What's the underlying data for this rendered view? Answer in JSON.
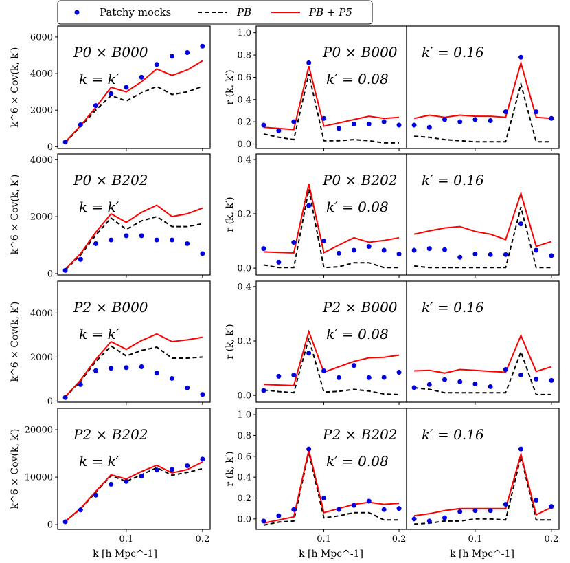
{
  "legend": {
    "entries": [
      {
        "label": "Patchy mocks",
        "style": "markers",
        "color": "#0000dd"
      },
      {
        "label": "PB",
        "style": "dashed",
        "color": "#000000"
      },
      {
        "label": "PB + P5",
        "style": "solid",
        "color": "#ff0000"
      }
    ]
  },
  "shared_x": {
    "label": "k [h Mpc^-1]",
    "ticks": [
      0.1,
      0.2
    ],
    "tick_labels": [
      "0.1",
      "0.2"
    ],
    "xlim": [
      0.01,
      0.21
    ]
  },
  "chart_data": [
    {
      "type": "line",
      "id": "p0b000-cov",
      "row": 0,
      "col": 0,
      "annotations": [
        "P0 × B000",
        "k = k′"
      ],
      "ylabel": "k^6 × Cov(k, k′)",
      "ylim": [
        -100,
        6600
      ],
      "yticks": [
        0,
        2000,
        4000,
        6000
      ],
      "ytick_labels": [
        "0",
        "2000",
        "4000",
        "6000"
      ],
      "x": [
        0.02,
        0.04,
        0.06,
        0.08,
        0.1,
        0.12,
        0.14,
        0.16,
        0.18,
        0.2
      ],
      "series": [
        {
          "name": "Patchy mocks",
          "values": [
            250,
            1200,
            2250,
            2900,
            3250,
            3800,
            4500,
            4950,
            5150,
            5500
          ]
        },
        {
          "name": "PB",
          "values": [
            220,
            1100,
            2000,
            2800,
            2500,
            2950,
            3300,
            2850,
            3000,
            3300
          ]
        },
        {
          "name": "PB + P5",
          "values": [
            250,
            1150,
            2150,
            3250,
            3000,
            3550,
            4250,
            3900,
            4200,
            4700
          ]
        }
      ]
    },
    {
      "type": "line",
      "id": "p0b000-r-008",
      "row": 0,
      "col": 1,
      "annotations": [
        "P0 × B000",
        "k′ = 0.08"
      ],
      "ylabel": "r (k, k′)",
      "ylim": [
        -0.04,
        1.06
      ],
      "yticks": [
        0.0,
        0.2,
        0.4,
        0.6,
        0.8,
        1.0
      ],
      "ytick_labels": [
        "0.0",
        "0.2",
        "0.4",
        "0.6",
        "0.8",
        "1.0"
      ],
      "x": [
        0.02,
        0.04,
        0.06,
        0.08,
        0.1,
        0.12,
        0.14,
        0.16,
        0.18,
        0.2
      ],
      "series": [
        {
          "name": "Patchy mocks",
          "values": [
            0.17,
            0.12,
            0.2,
            0.73,
            0.23,
            0.14,
            0.18,
            0.18,
            0.2,
            0.17
          ]
        },
        {
          "name": "PB",
          "values": [
            0.09,
            0.06,
            0.04,
            0.63,
            0.03,
            0.03,
            0.04,
            0.03,
            0.01,
            0.01
          ]
        },
        {
          "name": "PB + P5",
          "values": [
            0.15,
            0.14,
            0.13,
            0.7,
            0.16,
            0.19,
            0.22,
            0.25,
            0.23,
            0.24
          ]
        }
      ]
    },
    {
      "type": "line",
      "id": "p0b000-r-016",
      "row": 0,
      "col": 2,
      "annotations": [
        "k′ = 0.16"
      ],
      "ylabel": "",
      "ylim": [
        -0.04,
        1.06
      ],
      "yticks": [],
      "ytick_labels": [],
      "x": [
        0.02,
        0.04,
        0.06,
        0.08,
        0.1,
        0.12,
        0.14,
        0.16,
        0.18,
        0.2
      ],
      "series": [
        {
          "name": "Patchy mocks",
          "values": [
            0.17,
            0.15,
            0.22,
            0.2,
            0.22,
            0.21,
            0.29,
            0.78,
            0.29,
            0.23
          ]
        },
        {
          "name": "PB",
          "values": [
            0.07,
            0.06,
            0.04,
            0.03,
            0.02,
            0.02,
            0.02,
            0.54,
            0.02,
            0.02
          ]
        },
        {
          "name": "PB + P5",
          "values": [
            0.23,
            0.26,
            0.24,
            0.26,
            0.25,
            0.25,
            0.24,
            0.73,
            0.24,
            0.23
          ]
        }
      ]
    },
    {
      "type": "line",
      "id": "p0b202-cov",
      "row": 1,
      "col": 0,
      "annotations": [
        "P0 × B202",
        "k = k′"
      ],
      "ylabel": "k^6 × Cov(k, k′)",
      "ylim": [
        -50,
        4200
      ],
      "yticks": [
        0,
        2000,
        4000
      ],
      "ytick_labels": [
        "0",
        "2000",
        "4000"
      ],
      "x": [
        0.02,
        0.04,
        0.06,
        0.08,
        0.1,
        0.12,
        0.14,
        0.16,
        0.18,
        0.2
      ],
      "series": [
        {
          "name": "Patchy mocks",
          "values": [
            110,
            500,
            1050,
            1180,
            1330,
            1330,
            1180,
            1180,
            1050,
            700
          ]
        },
        {
          "name": "PB",
          "values": [
            130,
            650,
            1350,
            1950,
            1550,
            1850,
            2000,
            1650,
            1650,
            1750
          ]
        },
        {
          "name": "PB + P5",
          "values": [
            150,
            700,
            1450,
            2100,
            1800,
            2150,
            2400,
            2000,
            2100,
            2300
          ]
        }
      ]
    },
    {
      "type": "line",
      "id": "p0b202-r-008",
      "row": 1,
      "col": 1,
      "annotations": [
        "P0 × B202",
        "k′ = 0.08"
      ],
      "ylabel": "r (k, k′)",
      "ylim": [
        -0.025,
        0.42
      ],
      "yticks": [
        0.0,
        0.2,
        0.4
      ],
      "ytick_labels": [
        "0.0",
        "0.2",
        "0.4"
      ],
      "x": [
        0.02,
        0.04,
        0.06,
        0.08,
        0.1,
        0.12,
        0.14,
        0.16,
        0.18,
        0.2
      ],
      "series": [
        {
          "name": "Patchy mocks",
          "values": [
            0.072,
            0.022,
            0.095,
            0.23,
            0.1,
            0.055,
            0.066,
            0.08,
            0.066,
            0.052
          ]
        },
        {
          "name": "PB",
          "values": [
            0.012,
            0.002,
            0.002,
            0.29,
            0.002,
            0.005,
            0.02,
            0.02,
            0.002,
            0.002
          ]
        },
        {
          "name": "PB + P5",
          "values": [
            0.06,
            0.058,
            0.056,
            0.31,
            0.057,
            0.085,
            0.112,
            0.095,
            0.102,
            0.112
          ]
        }
      ]
    },
    {
      "type": "line",
      "id": "p0b202-r-016",
      "row": 1,
      "col": 2,
      "annotations": [
        "k′ = 0.16"
      ],
      "ylabel": "",
      "ylim": [
        -0.025,
        0.42
      ],
      "yticks": [],
      "ytick_labels": [],
      "x": [
        0.02,
        0.04,
        0.06,
        0.08,
        0.1,
        0.12,
        0.14,
        0.16,
        0.18,
        0.2
      ],
      "series": [
        {
          "name": "Patchy mocks",
          "values": [
            0.066,
            0.072,
            0.068,
            0.04,
            0.052,
            0.05,
            0.05,
            0.163,
            0.066,
            0.046
          ]
        },
        {
          "name": "PB",
          "values": [
            0.008,
            0.002,
            0.002,
            0.002,
            0.002,
            0.002,
            0.002,
            0.225,
            0.002,
            0.002
          ]
        },
        {
          "name": "PB + P5",
          "values": [
            0.125,
            0.137,
            0.148,
            0.153,
            0.135,
            0.125,
            0.105,
            0.275,
            0.08,
            0.098
          ]
        }
      ]
    },
    {
      "type": "line",
      "id": "p2b000-cov",
      "row": 2,
      "col": 0,
      "annotations": [
        "P2 × B000",
        "k = k′"
      ],
      "ylabel": "k^6 × Cov(k, k′)",
      "ylim": [
        -50,
        5450
      ],
      "yticks": [
        0,
        2000,
        4000
      ],
      "ytick_labels": [
        "0",
        "2000",
        "4000"
      ],
      "x": [
        0.02,
        0.04,
        0.06,
        0.08,
        0.1,
        0.12,
        0.14,
        0.16,
        0.18,
        0.2
      ],
      "series": [
        {
          "name": "Patchy mocks",
          "values": [
            160,
            750,
            1380,
            1490,
            1520,
            1560,
            1270,
            1030,
            600,
            300
          ]
        },
        {
          "name": "PB",
          "values": [
            180,
            900,
            1800,
            2500,
            2050,
            2300,
            2450,
            1950,
            1950,
            2000
          ]
        },
        {
          "name": "PB + P5",
          "values": [
            200,
            950,
            1900,
            2700,
            2350,
            2750,
            3050,
            2700,
            2780,
            2900
          ]
        }
      ]
    },
    {
      "type": "line",
      "id": "p2b000-r-008",
      "row": 2,
      "col": 1,
      "annotations": [
        "P2 × B000",
        "k′ = 0.08"
      ],
      "ylabel": "r (k, k′)",
      "ylim": [
        -0.025,
        0.42
      ],
      "yticks": [
        0.0,
        0.2,
        0.4
      ],
      "ytick_labels": [
        "0.0",
        "0.2",
        "0.4"
      ],
      "x": [
        0.02,
        0.04,
        0.06,
        0.08,
        0.1,
        0.12,
        0.14,
        0.16,
        0.18,
        0.2
      ],
      "series": [
        {
          "name": "Patchy mocks",
          "values": [
            0.018,
            0.07,
            0.075,
            0.155,
            0.09,
            0.065,
            0.11,
            0.065,
            0.066,
            0.085
          ]
        },
        {
          "name": "PB",
          "values": [
            0.02,
            0.014,
            0.01,
            0.21,
            0.012,
            0.015,
            0.022,
            0.016,
            0.005,
            0.003
          ]
        },
        {
          "name": "PB + P5",
          "values": [
            0.04,
            0.038,
            0.036,
            0.235,
            0.085,
            0.105,
            0.125,
            0.138,
            0.14,
            0.148
          ]
        }
      ]
    },
    {
      "type": "line",
      "id": "p2b000-r-016",
      "row": 2,
      "col": 2,
      "annotations": [
        "k′ = 0.16"
      ],
      "ylabel": "",
      "ylim": [
        -0.025,
        0.42
      ],
      "yticks": [],
      "ytick_labels": [],
      "x": [
        0.02,
        0.04,
        0.06,
        0.08,
        0.1,
        0.12,
        0.14,
        0.16,
        0.18,
        0.2
      ],
      "series": [
        {
          "name": "Patchy mocks",
          "values": [
            0.028,
            0.04,
            0.058,
            0.05,
            0.042,
            0.032,
            0.095,
            0.075,
            0.06,
            0.055
          ]
        },
        {
          "name": "PB",
          "values": [
            0.028,
            0.022,
            0.01,
            0.01,
            0.01,
            0.01,
            0.01,
            0.16,
            0.003,
            0.003
          ]
        },
        {
          "name": "PB + P5",
          "values": [
            0.09,
            0.092,
            0.082,
            0.095,
            0.092,
            0.088,
            0.085,
            0.22,
            0.088,
            0.105
          ]
        }
      ]
    },
    {
      "type": "line",
      "id": "p2b202-cov",
      "row": 3,
      "col": 0,
      "annotations": [
        "P2 × B202",
        "k = k′"
      ],
      "ylabel": "k^6 × Cov(k, k′)",
      "ylim": [
        -1000,
        24500
      ],
      "yticks": [
        0,
        10000,
        20000
      ],
      "ytick_labels": [
        "0",
        "10000",
        "20000"
      ],
      "x": [
        0.02,
        0.04,
        0.06,
        0.08,
        0.1,
        0.12,
        0.14,
        0.16,
        0.18,
        0.2
      ],
      "series": [
        {
          "name": "Patchy mocks",
          "values": [
            600,
            3100,
            6200,
            8500,
            9100,
            10200,
            11500,
            11600,
            12400,
            13800
          ]
        },
        {
          "name": "PB",
          "values": [
            650,
            3300,
            6800,
            10300,
            9100,
            10500,
            12000,
            10400,
            11000,
            11800
          ]
        },
        {
          "name": "PB + P5",
          "values": [
            700,
            3400,
            7000,
            10500,
            9600,
            11200,
            12500,
            10900,
            11600,
            13200
          ]
        }
      ]
    },
    {
      "type": "line",
      "id": "p2b202-r-008",
      "row": 3,
      "col": 1,
      "annotations": [
        "P2 × B202",
        "k′ = 0.08"
      ],
      "ylabel": "r (k, k′)",
      "ylim": [
        -0.1,
        1.06
      ],
      "yticks": [
        0.0,
        0.2,
        0.4,
        0.6,
        0.8,
        1.0
      ],
      "ytick_labels": [
        "0.0",
        "0.2",
        "0.4",
        "0.6",
        "0.8",
        "1.0"
      ],
      "x": [
        0.02,
        0.04,
        0.06,
        0.08,
        0.1,
        0.12,
        0.14,
        0.16,
        0.18,
        0.2
      ],
      "series": [
        {
          "name": "Patchy mocks",
          "values": [
            -0.02,
            0.03,
            0.09,
            0.67,
            0.2,
            0.09,
            0.13,
            0.17,
            0.09,
            0.1
          ]
        },
        {
          "name": "PB",
          "values": [
            -0.06,
            -0.03,
            -0.02,
            0.64,
            0.01,
            0.03,
            0.06,
            0.06,
            -0.01,
            -0.01
          ]
        },
        {
          "name": "PB + P5",
          "values": [
            -0.04,
            -0.01,
            0.02,
            0.66,
            0.06,
            0.1,
            0.14,
            0.16,
            0.14,
            0.15
          ]
        }
      ]
    },
    {
      "type": "line",
      "id": "p2b202-r-016",
      "row": 3,
      "col": 2,
      "annotations": [
        "k′ = 0.16"
      ],
      "ylabel": "",
      "ylim": [
        -0.1,
        1.06
      ],
      "yticks": [],
      "ytick_labels": [],
      "x": [
        0.02,
        0.04,
        0.06,
        0.08,
        0.1,
        0.12,
        0.14,
        0.16,
        0.18,
        0.2
      ],
      "series": [
        {
          "name": "Patchy mocks",
          "values": [
            0.0,
            -0.02,
            0.01,
            0.07,
            0.08,
            0.08,
            0.14,
            0.67,
            0.18,
            0.12
          ]
        },
        {
          "name": "PB",
          "values": [
            -0.05,
            -0.04,
            -0.02,
            -0.02,
            0.0,
            0.0,
            -0.01,
            0.6,
            -0.01,
            -0.01
          ]
        },
        {
          "name": "PB + P5",
          "values": [
            0.03,
            0.05,
            0.08,
            0.1,
            0.1,
            0.1,
            0.1,
            0.62,
            0.04,
            0.11
          ]
        }
      ]
    }
  ]
}
